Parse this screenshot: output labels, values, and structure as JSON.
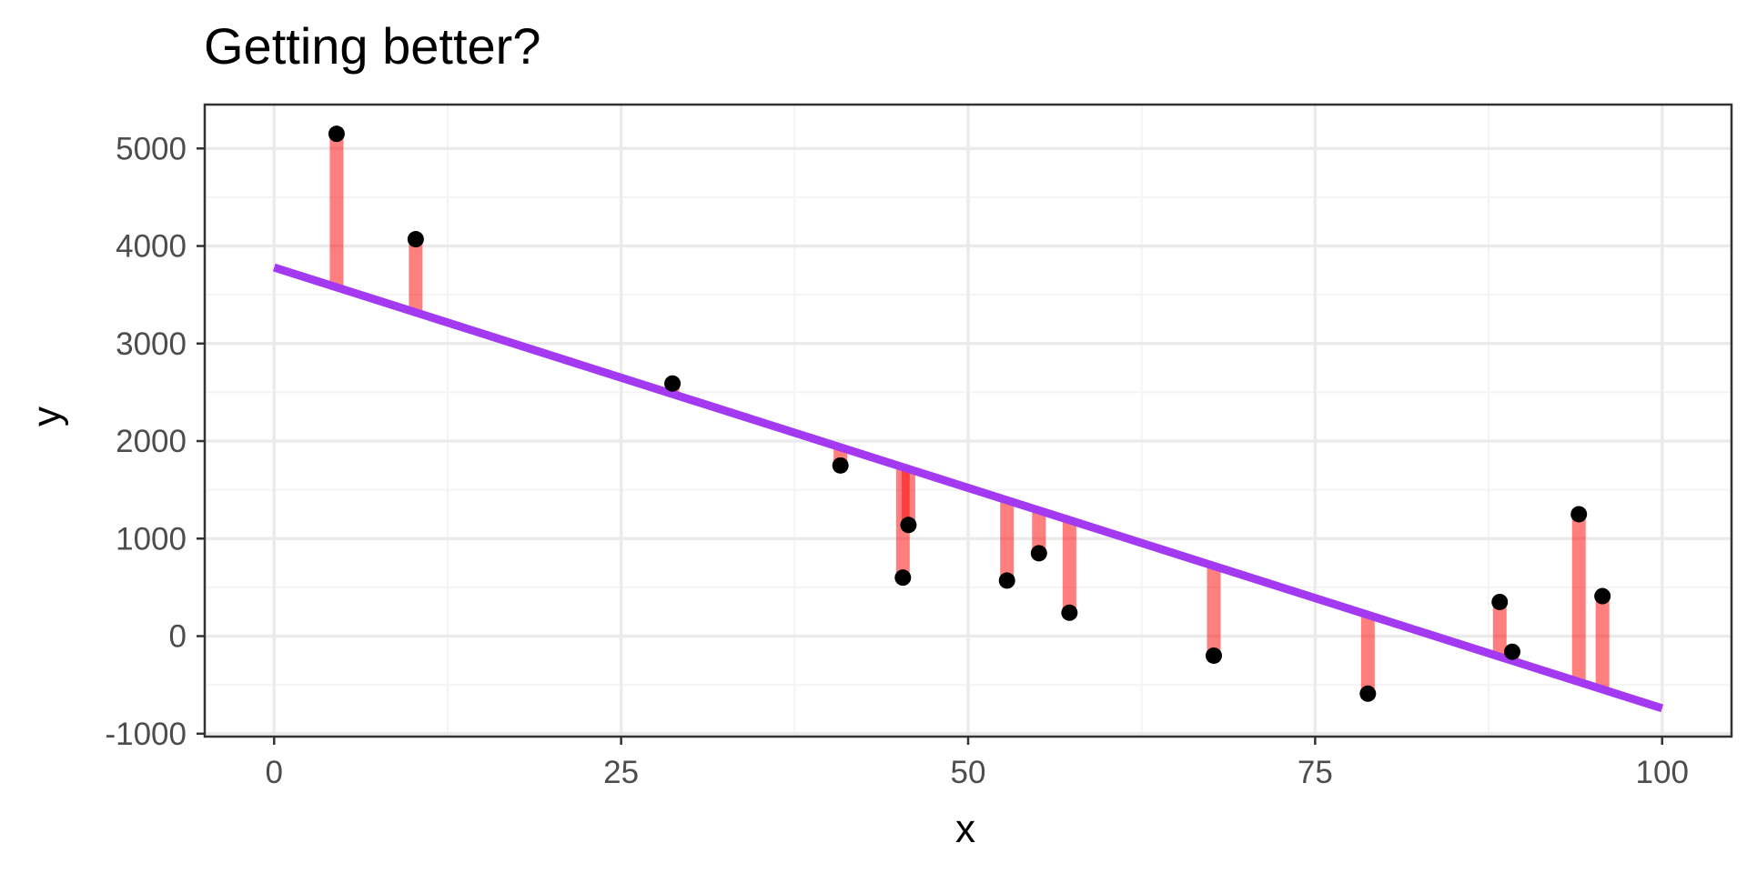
{
  "chart_data": {
    "type": "scatter",
    "title": "Getting better?",
    "xlabel": "x",
    "ylabel": "y",
    "xlim": [
      -5,
      105
    ],
    "ylim": [
      -1030,
      5450
    ],
    "x_ticks": [
      0,
      25,
      50,
      75,
      100
    ],
    "x_tick_labels": [
      "0",
      "25",
      "50",
      "75",
      "100"
    ],
    "y_ticks": [
      -1000,
      0,
      1000,
      2000,
      3000,
      4000,
      5000
    ],
    "y_tick_labels": [
      "-1000",
      "0",
      "1000",
      "2000",
      "3000",
      "4000",
      "5000"
    ],
    "grid": true,
    "theme": "bw",
    "points": [
      {
        "x": 4.5,
        "y": 5150
      },
      {
        "x": 10.2,
        "y": 4070
      },
      {
        "x": 28.7,
        "y": 2590
      },
      {
        "x": 40.8,
        "y": 1750
      },
      {
        "x": 45.3,
        "y": 600
      },
      {
        "x": 45.7,
        "y": 1140
      },
      {
        "x": 52.8,
        "y": 570
      },
      {
        "x": 55.1,
        "y": 850
      },
      {
        "x": 57.3,
        "y": 240
      },
      {
        "x": 67.7,
        "y": -200
      },
      {
        "x": 78.8,
        "y": -590
      },
      {
        "x": 88.3,
        "y": 350
      },
      {
        "x": 89.2,
        "y": -160
      },
      {
        "x": 94.0,
        "y": 1250
      },
      {
        "x": 95.7,
        "y": 410
      }
    ],
    "fit_line": {
      "x0": 0,
      "y0": 3780,
      "x1": 100,
      "y1": -740
    },
    "residuals": true,
    "colors": {
      "point": "#000000",
      "fit_line": "#a33af2",
      "residual": "#ff0000",
      "panel_border": "#333333",
      "grid_major": "#ebebeb",
      "grid_minor": "#f4f4f4"
    }
  }
}
